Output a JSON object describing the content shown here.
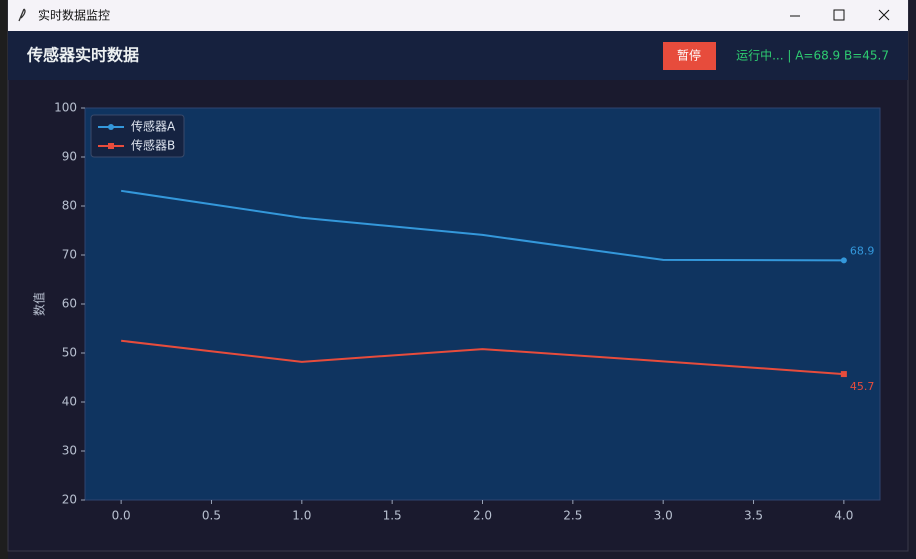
{
  "window": {
    "title": "实时数据监控"
  },
  "header": {
    "title": "传感器实时数据",
    "button": "暂停",
    "status": "运行中... | A=68.9  B=45.7"
  },
  "chart_data": {
    "type": "line",
    "ylabel": "数值",
    "x": [
      0,
      1,
      2,
      3,
      4
    ],
    "series": [
      {
        "name": "传感器A",
        "color": "#3498db",
        "marker": "circle",
        "values": [
          83.1,
          77.6,
          74.1,
          69.0,
          68.9
        ],
        "value_labels": [
          null,
          null,
          null,
          null,
          "68.9"
        ]
      },
      {
        "name": "传感器B",
        "color": "#e74c3c",
        "marker": "square",
        "values": [
          52.5,
          48.2,
          50.8,
          48.3,
          45.7
        ],
        "value_labels": [
          null,
          null,
          null,
          null,
          "45.7"
        ]
      }
    ],
    "xlim": [
      -0.2,
      4.2
    ],
    "xticks": [
      {
        "value": 0,
        "label": "0.0"
      },
      0.5,
      {
        "value": 1,
        "label": "1.0"
      },
      1.5,
      {
        "value": 2,
        "label": "2.0"
      },
      2.5,
      {
        "value": 3,
        "label": "3.0"
      },
      3.5,
      {
        "value": 4,
        "label": "4.0"
      }
    ],
    "ylim": [
      20,
      100
    ],
    "yticks": [
      20,
      30,
      40,
      50,
      60,
      70,
      80,
      90,
      100
    ],
    "grid": false,
    "legend": "upper left"
  }
}
